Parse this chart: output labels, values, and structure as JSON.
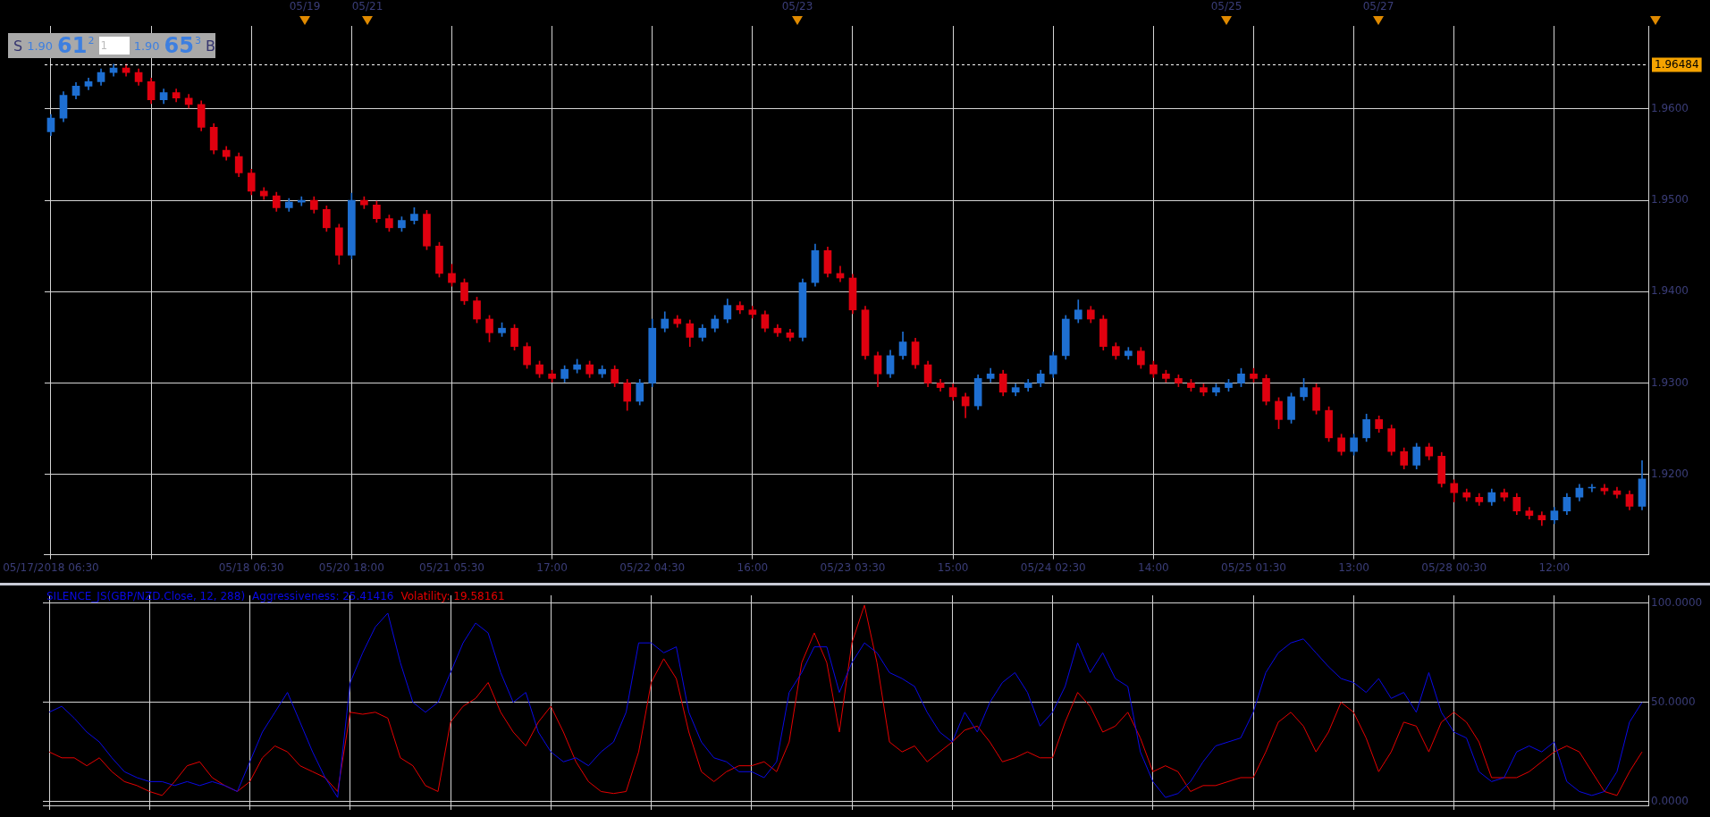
{
  "chart_data": [
    {
      "type": "candlestick",
      "ylim": [
        1.9112,
        1.9691
      ],
      "yticks": [
        {
          "value": 1.92,
          "label": "1.9200"
        },
        {
          "value": 1.93,
          "label": "1.9300"
        },
        {
          "value": 1.94,
          "label": "1.9400"
        },
        {
          "value": 1.95,
          "label": "1.9500"
        },
        {
          "value": 1.96,
          "label": "1.9600"
        }
      ],
      "grid": true,
      "annotations": [
        "05/19",
        "05/21",
        "05/23",
        "05/25",
        "05/27",
        "S",
        "1.90",
        "61",
        "2",
        "1",
        "1.90",
        "65",
        "3",
        "B"
      ],
      "ref_lines": [
        {
          "axis": "y",
          "value": 1.96484,
          "label": "1.96484",
          "color": "#ffffff",
          "line_style": "dashed"
        }
      ],
      "categories": [
        "05/17/2018 06:30",
        null,
        null,
        null,
        null,
        null,
        null,
        null,
        null,
        null,
        null,
        null,
        null,
        null,
        null,
        null,
        "05/18 06:30",
        null,
        null,
        null,
        null,
        null,
        null,
        null,
        "05/20 18:00",
        null,
        null,
        null,
        null,
        null,
        null,
        null,
        "05/21 05:30",
        null,
        null,
        null,
        null,
        null,
        null,
        null,
        "17:00",
        null,
        null,
        null,
        null,
        null,
        null,
        null,
        "05/22 04:30",
        null,
        null,
        null,
        null,
        null,
        null,
        null,
        "16:00",
        null,
        null,
        null,
        null,
        null,
        null,
        null,
        "05/23 03:30",
        null,
        null,
        null,
        null,
        null,
        null,
        null,
        "15:00",
        null,
        null,
        null,
        null,
        null,
        null,
        null,
        "05/24 02:30",
        null,
        null,
        null,
        null,
        null,
        null,
        null,
        "14:00",
        null,
        null,
        null,
        null,
        null,
        null,
        null,
        "05/25 01:30",
        null,
        null,
        null,
        null,
        null,
        null,
        null,
        "13:00",
        null,
        null,
        null,
        null,
        null,
        null,
        null,
        "05/28 00:30",
        null,
        null,
        null,
        null,
        null,
        null,
        null,
        "12:00",
        null,
        null,
        null,
        null,
        null,
        null,
        null
      ],
      "colors": [
        "#1e6fd2",
        "#1e6fd2",
        "#1e6fd2",
        "#1e6fd2",
        "#1e6fd2",
        "#1e6fd2",
        "#e0000f",
        "#e0000f",
        "#e0000f",
        "#1e6fd2",
        "#e0000f",
        "#e0000f",
        "#e0000f",
        "#e0000f",
        "#e0000f",
        "#e0000f",
        "#e0000f",
        "#e0000f",
        "#e0000f",
        "#1e6fd2",
        "#1e6fd2",
        "#e0000f",
        "#e0000f",
        "#e0000f",
        "#1e6fd2",
        "#e0000f",
        "#e0000f",
        "#e0000f",
        "#1e6fd2",
        "#1e6fd2",
        "#e0000f",
        "#e0000f",
        "#e0000f",
        "#e0000f",
        "#e0000f",
        "#e0000f",
        "#1e6fd2",
        "#e0000f",
        "#e0000f",
        "#e0000f",
        "#e0000f",
        "#1e6fd2",
        "#1e6fd2",
        "#e0000f",
        "#1e6fd2",
        "#e0000f",
        "#e0000f",
        "#1e6fd2",
        "#1e6fd2",
        "#1e6fd2",
        "#e0000f",
        "#e0000f",
        "#1e6fd2",
        "#1e6fd2",
        "#1e6fd2",
        "#e0000f",
        "#e0000f",
        "#e0000f",
        "#e0000f",
        "#e0000f",
        "#1e6fd2",
        "#1e6fd2",
        "#e0000f",
        "#e0000f",
        "#e0000f",
        "#e0000f",
        "#e0000f",
        "#1e6fd2",
        "#1e6fd2",
        "#e0000f",
        "#e0000f",
        "#e0000f",
        "#e0000f",
        "#e0000f",
        "#1e6fd2",
        "#1e6fd2",
        "#e0000f",
        "#1e6fd2",
        "#1e6fd2",
        "#1e6fd2",
        "#1e6fd2",
        "#1e6fd2",
        "#1e6fd2",
        "#e0000f",
        "#e0000f",
        "#e0000f",
        "#1e6fd2",
        "#e0000f",
        "#e0000f",
        "#e0000f",
        "#e0000f",
        "#e0000f",
        "#e0000f",
        "#1e6fd2",
        "#1e6fd2",
        "#1e6fd2",
        "#e0000f",
        "#e0000f",
        "#e0000f",
        "#1e6fd2",
        "#1e6fd2",
        "#e0000f",
        "#e0000f",
        "#e0000f",
        "#1e6fd2",
        "#1e6fd2",
        "#e0000f",
        "#e0000f",
        "#e0000f",
        "#1e6fd2",
        "#e0000f",
        "#e0000f",
        "#e0000f",
        "#e0000f",
        "#e0000f",
        "#1e6fd2",
        "#e0000f",
        "#e0000f",
        "#e0000f",
        "#e0000f",
        "#1e6fd2",
        "#1e6fd2",
        "#1e6fd2",
        "#1e6fd2",
        "#e0000f",
        "#e0000f",
        "#e0000f",
        "#1e6fd2"
      ],
      "ohlc": [
        [
          1.9575,
          1.9594,
          1.9571,
          1.959
        ],
        [
          1.959,
          1.9619,
          1.9586,
          1.9615
        ],
        [
          1.9615,
          1.9629,
          1.9611,
          1.9625
        ],
        [
          1.9625,
          1.9634,
          1.9621,
          1.963
        ],
        [
          1.963,
          1.9644,
          1.9626,
          1.964
        ],
        [
          1.964,
          1.9649,
          1.9636,
          1.9645
        ],
        [
          1.9645,
          1.9649,
          1.9636,
          1.964
        ],
        [
          1.964,
          1.9644,
          1.9626,
          1.963
        ],
        [
          1.963,
          1.9634,
          1.9606,
          1.961
        ],
        [
          1.961,
          1.9622,
          1.9606,
          1.9618
        ],
        [
          1.9618,
          1.9622,
          1.9608,
          1.9612
        ],
        [
          1.9612,
          1.9616,
          1.9601,
          1.9605
        ],
        [
          1.9605,
          1.9609,
          1.9576,
          1.958
        ],
        [
          1.958,
          1.9584,
          1.9551,
          1.9555
        ],
        [
          1.9555,
          1.9559,
          1.9544,
          1.9548
        ],
        [
          1.9548,
          1.9552,
          1.9526,
          1.953
        ],
        [
          1.953,
          1.9534,
          1.9506,
          1.951
        ],
        [
          1.951,
          1.9514,
          1.9501,
          1.9505
        ],
        [
          1.9505,
          1.9509,
          1.9488,
          1.9492
        ],
        [
          1.9492,
          1.9502,
          1.9488,
          1.9498
        ],
        [
          1.9498,
          1.9504,
          1.9494,
          1.95
        ],
        [
          1.95,
          1.9504,
          1.9486,
          1.949
        ],
        [
          1.949,
          1.9494,
          1.9466,
          1.947
        ],
        [
          1.947,
          1.9474,
          1.943,
          1.944
        ],
        [
          1.944,
          1.9508,
          1.9436,
          1.95
        ],
        [
          1.95,
          1.9504,
          1.9491,
          1.9495
        ],
        [
          1.9495,
          1.9499,
          1.9476,
          1.948
        ],
        [
          1.948,
          1.9484,
          1.9466,
          1.947
        ],
        [
          1.947,
          1.9482,
          1.9466,
          1.9478
        ],
        [
          1.9478,
          1.9492,
          1.9474,
          1.9485
        ],
        [
          1.9485,
          1.9489,
          1.9446,
          1.945
        ],
        [
          1.945,
          1.9454,
          1.9416,
          1.942
        ],
        [
          1.942,
          1.943,
          1.9406,
          1.941
        ],
        [
          1.941,
          1.9414,
          1.9386,
          1.939
        ],
        [
          1.939,
          1.9394,
          1.9366,
          1.937
        ],
        [
          1.937,
          1.9374,
          1.9345,
          1.9355
        ],
        [
          1.9355,
          1.9366,
          1.9351,
          1.936
        ],
        [
          1.936,
          1.9364,
          1.9336,
          1.934
        ],
        [
          1.934,
          1.9344,
          1.9316,
          1.932
        ],
        [
          1.932,
          1.9324,
          1.9306,
          1.931
        ],
        [
          1.931,
          1.9314,
          1.9301,
          1.9305
        ],
        [
          1.9305,
          1.9319,
          1.9301,
          1.9315
        ],
        [
          1.9315,
          1.9326,
          1.9311,
          1.932
        ],
        [
          1.932,
          1.9324,
          1.9306,
          1.931
        ],
        [
          1.931,
          1.9319,
          1.9306,
          1.9315
        ],
        [
          1.9315,
          1.9319,
          1.9296,
          1.93
        ],
        [
          1.93,
          1.9304,
          1.927,
          1.928
        ],
        [
          1.928,
          1.9304,
          1.9276,
          1.93
        ],
        [
          1.93,
          1.937,
          1.9296,
          1.936
        ],
        [
          1.936,
          1.9378,
          1.9356,
          1.937
        ],
        [
          1.937,
          1.9374,
          1.9361,
          1.9365
        ],
        [
          1.9365,
          1.9369,
          1.934,
          1.935
        ],
        [
          1.935,
          1.9364,
          1.9346,
          1.936
        ],
        [
          1.936,
          1.9374,
          1.9356,
          1.937
        ],
        [
          1.937,
          1.9392,
          1.9366,
          1.9385
        ],
        [
          1.9385,
          1.9389,
          1.9376,
          1.938
        ],
        [
          1.938,
          1.9384,
          1.9371,
          1.9375
        ],
        [
          1.9375,
          1.9379,
          1.9356,
          1.936
        ],
        [
          1.936,
          1.9364,
          1.9351,
          1.9355
        ],
        [
          1.9355,
          1.9359,
          1.9346,
          1.935
        ],
        [
          1.935,
          1.9414,
          1.9346,
          1.941
        ],
        [
          1.941,
          1.9452,
          1.9406,
          1.9445
        ],
        [
          1.9445,
          1.9449,
          1.9416,
          1.942
        ],
        [
          1.942,
          1.9428,
          1.9411,
          1.9415
        ],
        [
          1.9415,
          1.9419,
          1.9376,
          1.938
        ],
        [
          1.938,
          1.9384,
          1.9326,
          1.933
        ],
        [
          1.933,
          1.9334,
          1.9296,
          1.931
        ],
        [
          1.931,
          1.9336,
          1.9306,
          1.933
        ],
        [
          1.933,
          1.9356,
          1.9326,
          1.9345
        ],
        [
          1.9345,
          1.9349,
          1.9316,
          1.932
        ],
        [
          1.932,
          1.9324,
          1.9296,
          1.93
        ],
        [
          1.93,
          1.9304,
          1.9291,
          1.9295
        ],
        [
          1.9295,
          1.9299,
          1.9281,
          1.9285
        ],
        [
          1.9285,
          1.9289,
          1.9262,
          1.9275
        ],
        [
          1.9275,
          1.9309,
          1.9271,
          1.9305
        ],
        [
          1.9305,
          1.9316,
          1.9301,
          1.931
        ],
        [
          1.931,
          1.9314,
          1.9286,
          1.929
        ],
        [
          1.929,
          1.9299,
          1.9286,
          1.9295
        ],
        [
          1.9295,
          1.9304,
          1.9291,
          1.93
        ],
        [
          1.93,
          1.9314,
          1.9296,
          1.931
        ],
        [
          1.931,
          1.9334,
          1.9306,
          1.933
        ],
        [
          1.933,
          1.9374,
          1.9326,
          1.937
        ],
        [
          1.937,
          1.9391,
          1.9366,
          1.938
        ],
        [
          1.938,
          1.9384,
          1.9366,
          1.937
        ],
        [
          1.937,
          1.9374,
          1.9336,
          1.934
        ],
        [
          1.934,
          1.9344,
          1.9326,
          1.933
        ],
        [
          1.933,
          1.9339,
          1.9326,
          1.9335
        ],
        [
          1.9335,
          1.9339,
          1.9316,
          1.932
        ],
        [
          1.932,
          1.9324,
          1.9306,
          1.931
        ],
        [
          1.931,
          1.9314,
          1.9301,
          1.9305
        ],
        [
          1.9305,
          1.9309,
          1.9296,
          1.93
        ],
        [
          1.93,
          1.9304,
          1.9291,
          1.9295
        ],
        [
          1.9295,
          1.9299,
          1.9286,
          1.929
        ],
        [
          1.929,
          1.9299,
          1.9286,
          1.9295
        ],
        [
          1.9295,
          1.9304,
          1.9291,
          1.93
        ],
        [
          1.93,
          1.9316,
          1.9296,
          1.931
        ],
        [
          1.931,
          1.9316,
          1.9301,
          1.9305
        ],
        [
          1.9305,
          1.9309,
          1.9276,
          1.928
        ],
        [
          1.928,
          1.9284,
          1.925,
          1.926
        ],
        [
          1.926,
          1.9289,
          1.9256,
          1.9285
        ],
        [
          1.9285,
          1.9305,
          1.9281,
          1.9295
        ],
        [
          1.9295,
          1.9299,
          1.9266,
          1.927
        ],
        [
          1.927,
          1.9274,
          1.9236,
          1.924
        ],
        [
          1.924,
          1.9244,
          1.9221,
          1.9225
        ],
        [
          1.9225,
          1.9244,
          1.9221,
          1.924
        ],
        [
          1.924,
          1.9266,
          1.9236,
          1.926
        ],
        [
          1.926,
          1.9264,
          1.9246,
          1.925
        ],
        [
          1.925,
          1.9254,
          1.9221,
          1.9225
        ],
        [
          1.9225,
          1.9229,
          1.9206,
          1.921
        ],
        [
          1.921,
          1.9234,
          1.9206,
          1.923
        ],
        [
          1.923,
          1.9234,
          1.9216,
          1.922
        ],
        [
          1.922,
          1.9224,
          1.9186,
          1.919
        ],
        [
          1.919,
          1.9194,
          1.917,
          1.918
        ],
        [
          1.918,
          1.9184,
          1.9171,
          1.9175
        ],
        [
          1.9175,
          1.9179,
          1.9166,
          1.917
        ],
        [
          1.917,
          1.9184,
          1.9166,
          1.918
        ],
        [
          1.918,
          1.9184,
          1.9171,
          1.9175
        ],
        [
          1.9175,
          1.9179,
          1.9156,
          1.916
        ],
        [
          1.916,
          1.9164,
          1.9151,
          1.9155
        ],
        [
          1.9155,
          1.9159,
          1.9144,
          1.915
        ],
        [
          1.915,
          1.9164,
          1.9146,
          1.916
        ],
        [
          1.916,
          1.9179,
          1.9156,
          1.9175
        ],
        [
          1.9175,
          1.9189,
          1.9171,
          1.9185
        ],
        [
          1.9185,
          1.9189,
          1.9181,
          1.9185
        ],
        [
          1.9185,
          1.9189,
          1.9178,
          1.9182
        ],
        [
          1.9182,
          1.9186,
          1.9174,
          1.9178
        ],
        [
          1.9178,
          1.9182,
          1.9161,
          1.9165
        ],
        [
          1.9165,
          1.9215,
          1.9161,
          1.9195
        ]
      ]
    },
    {
      "type": "line",
      "title": "SILENCE_JS(GBP/NZD.Close, 12, 288)",
      "ylim": [
        -2,
        104
      ],
      "yticks": [
        {
          "value": 0,
          "label": "0.0000"
        },
        {
          "value": 50,
          "label": "50.0000"
        },
        {
          "value": 100,
          "label": "100.0000"
        }
      ],
      "grid": true,
      "tick_labels": "y",
      "marker": "none",
      "line_style": "solid",
      "categories": [
        null,
        null,
        null,
        null,
        null,
        null,
        null,
        null,
        null,
        null,
        null,
        null,
        null,
        null,
        null,
        null,
        null,
        null,
        null,
        null,
        null,
        null,
        null,
        null,
        null,
        null,
        null,
        null,
        null,
        null,
        null,
        null,
        null,
        null,
        null,
        null,
        null,
        null,
        null,
        null,
        null,
        null,
        null,
        null,
        null,
        null,
        null,
        null,
        null,
        null,
        null,
        null,
        null,
        null,
        null,
        null,
        null,
        null,
        null,
        null,
        null,
        null,
        null,
        null,
        null,
        null,
        null,
        null,
        null,
        null,
        null,
        null,
        null,
        null,
        null,
        null,
        null,
        null,
        null,
        null,
        null,
        null,
        null,
        null,
        null,
        null,
        null,
        null,
        null,
        null,
        null,
        null,
        null,
        null,
        null,
        null,
        null,
        null,
        null,
        null,
        null,
        null,
        null,
        null,
        null,
        null,
        null,
        null,
        null,
        null,
        null,
        null,
        null,
        null,
        null,
        null,
        null,
        null,
        null,
        null,
        null,
        null,
        null,
        null,
        null,
        null,
        null,
        null
      ],
      "series": [
        {
          "name": "Aggressiveness: 25.41416",
          "color": "#0a0ae6",
          "values": [
            45,
            48,
            42,
            35,
            30,
            22,
            15,
            12,
            10,
            10,
            8,
            10,
            8,
            10,
            8,
            5,
            20,
            35,
            45,
            55,
            40,
            25,
            12,
            2,
            60,
            75,
            88,
            95,
            70,
            50,
            45,
            50,
            65,
            80,
            90,
            85,
            65,
            50,
            55,
            35,
            25,
            20,
            22,
            18,
            25,
            30,
            45,
            80,
            80,
            75,
            78,
            45,
            30,
            22,
            20,
            15,
            15,
            12,
            20,
            55,
            65,
            78,
            78,
            55,
            70,
            80,
            75,
            65,
            62,
            58,
            45,
            35,
            30,
            45,
            35,
            50,
            60,
            65,
            55,
            38,
            45,
            58,
            80,
            65,
            75,
            62,
            58,
            25,
            10,
            2,
            4,
            10,
            20,
            28,
            30,
            32,
            45,
            65,
            75,
            80,
            82,
            75,
            68,
            62,
            60,
            55,
            62,
            52,
            55,
            45,
            65,
            45,
            35,
            32,
            15,
            10,
            12,
            25,
            28,
            25,
            30,
            10,
            5,
            3,
            5,
            15,
            40,
            50
          ]
        },
        {
          "name": "Volatility: 19.58161",
          "color": "#e60000",
          "values": [
            25,
            22,
            22,
            18,
            22,
            15,
            10,
            8,
            5,
            3,
            10,
            18,
            20,
            12,
            8,
            5,
            10,
            22,
            28,
            25,
            18,
            15,
            12,
            5,
            45,
            44,
            45,
            42,
            22,
            18,
            8,
            5,
            40,
            48,
            52,
            60,
            45,
            35,
            28,
            40,
            48,
            35,
            20,
            10,
            5,
            4,
            5,
            25,
            60,
            72,
            62,
            35,
            15,
            10,
            15,
            18,
            18,
            20,
            15,
            30,
            70,
            85,
            70,
            35,
            80,
            99,
            70,
            30,
            25,
            28,
            20,
            25,
            30,
            36,
            38,
            30,
            20,
            22,
            25,
            22,
            22,
            40,
            55,
            48,
            35,
            38,
            45,
            32,
            15,
            18,
            15,
            5,
            8,
            8,
            10,
            12,
            12,
            25,
            40,
            45,
            38,
            25,
            35,
            50,
            45,
            32,
            15,
            25,
            40,
            38,
            25,
            40,
            45,
            40,
            30,
            12,
            12,
            12,
            15,
            20,
            25,
            28,
            25,
            15,
            5,
            3,
            15,
            25
          ]
        }
      ]
    }
  ]
}
